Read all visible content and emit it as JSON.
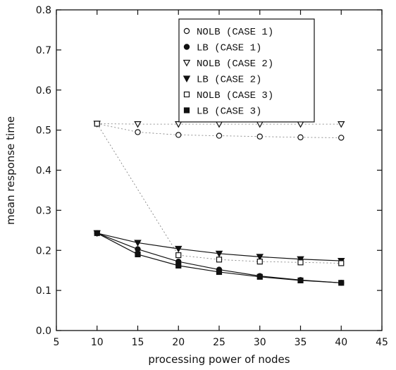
{
  "chart_data": {
    "type": "line",
    "xlabel": "processing power of nodes",
    "ylabel": "mean response time",
    "xlim": [
      5,
      45
    ],
    "ylim": [
      0.0,
      0.8
    ],
    "xticks": [
      5,
      10,
      15,
      20,
      25,
      30,
      35,
      40,
      45
    ],
    "yticks": [
      0.0,
      0.1,
      0.2,
      0.3,
      0.4,
      0.5,
      0.6,
      0.7,
      0.8
    ],
    "x": [
      10,
      15,
      20,
      25,
      30,
      35,
      40
    ],
    "legend_position": "top-right",
    "grid": false,
    "series": [
      {
        "name": "NOLB (CASE 1)",
        "marker": "circle-open",
        "line": "dotted",
        "values": [
          0.516,
          0.495,
          0.488,
          0.486,
          0.484,
          0.482,
          0.481
        ]
      },
      {
        "name": "LB (CASE 1)",
        "marker": "circle-filled",
        "line": "solid",
        "values": [
          0.243,
          0.203,
          0.172,
          0.152,
          0.136,
          0.126,
          0.119
        ]
      },
      {
        "name": "NOLB (CASE 2)",
        "marker": "triangle-open",
        "line": "dotted",
        "values": [
          0.516,
          0.515,
          0.515,
          0.515,
          0.515,
          0.515,
          0.515
        ]
      },
      {
        "name": "LB (CASE 2)",
        "marker": "triangle-filled",
        "line": "solid",
        "values": [
          0.243,
          0.219,
          0.204,
          0.192,
          0.184,
          0.178,
          0.174
        ]
      },
      {
        "name": "NOLB (CASE 3)",
        "marker": "square-open",
        "line": "dotted",
        "values": [
          0.516,
          null,
          0.188,
          0.177,
          0.172,
          0.17,
          0.168
        ]
      },
      {
        "name": "LB (CASE 3)",
        "marker": "square-filled",
        "line": "solid",
        "values": [
          0.243,
          0.19,
          0.162,
          0.146,
          0.134,
          0.125,
          0.119
        ]
      }
    ]
  }
}
